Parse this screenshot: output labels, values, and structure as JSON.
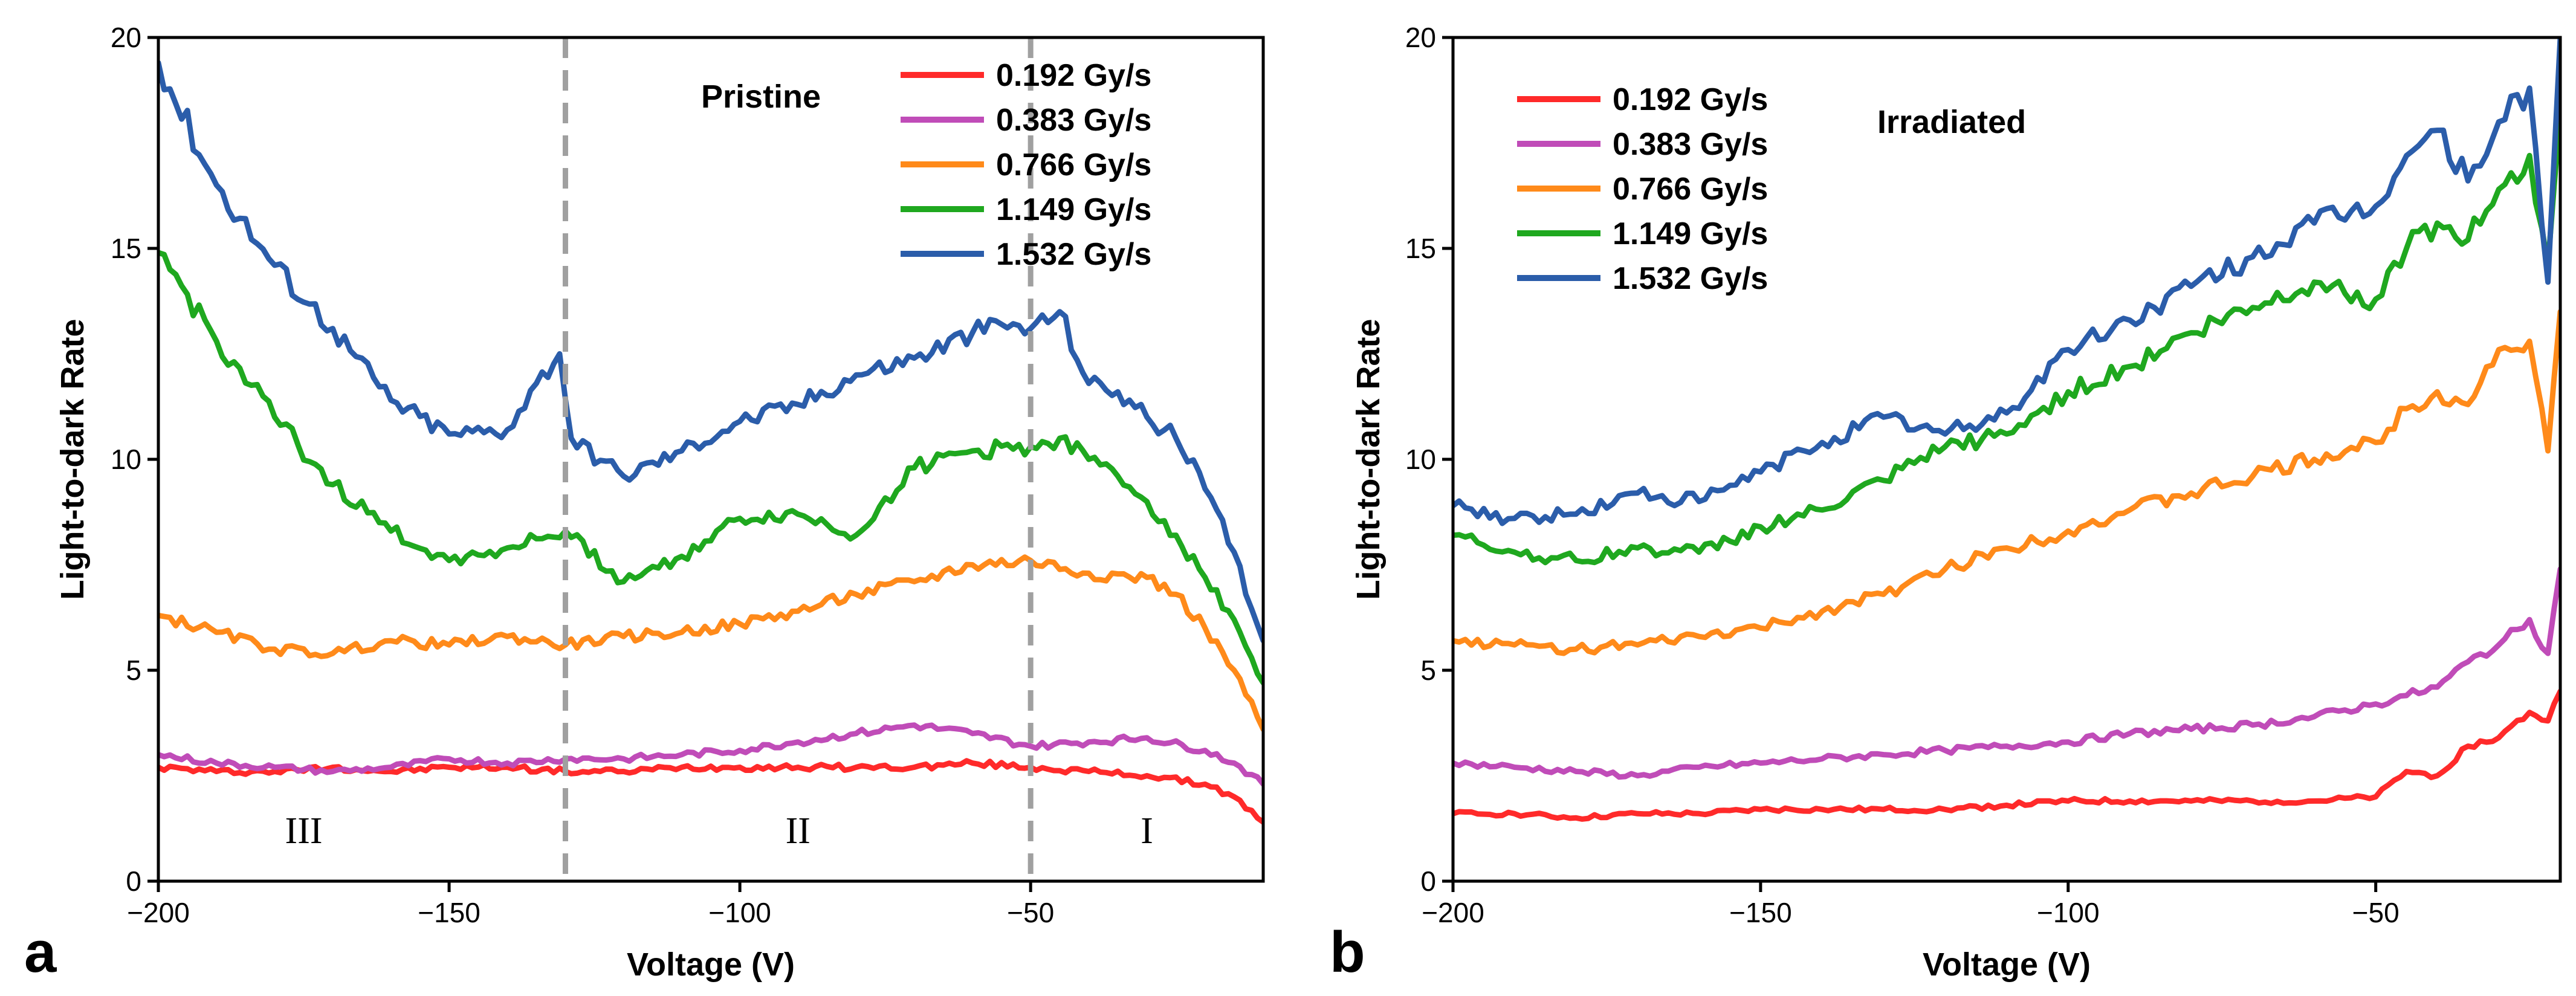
{
  "chart_data": [
    {
      "type": "line",
      "panel": "a",
      "annotation": "Pristine",
      "xlabel": "Voltage (V)",
      "ylabel": "Light-to-dark Rate",
      "xlim": [
        -200,
        -10
      ],
      "ylim": [
        0,
        20
      ],
      "xticks": [
        -200,
        -150,
        -100,
        -50
      ],
      "xtick_labels": [
        "−200",
        "−150",
        "−100",
        "−50"
      ],
      "yticks": [
        0,
        5,
        10,
        15,
        20
      ],
      "ytick_labels": [
        "0",
        "5",
        "10",
        "15",
        "20"
      ],
      "vlines": [
        -130,
        -50
      ],
      "regions": [
        {
          "label": "III",
          "x": -175,
          "y": 0.9
        },
        {
          "label": "II",
          "x": -90,
          "y": 0.9
        },
        {
          "label": "I",
          "x": -30,
          "y": 0.9
        }
      ],
      "legend_position": "top-right",
      "series": [
        {
          "name": "0.192 Gy/s",
          "color": "#FF2A2A",
          "x": [
            -200,
            -190,
            -180,
            -170,
            -160,
            -150,
            -140,
            -130,
            -120,
            -110,
            -100,
            -90,
            -80,
            -70,
            -60,
            -50,
            -40,
            -30,
            -20,
            -15,
            -10
          ],
          "y": [
            2.7,
            2.6,
            2.6,
            2.7,
            2.6,
            2.7,
            2.7,
            2.6,
            2.6,
            2.7,
            2.7,
            2.7,
            2.7,
            2.7,
            2.8,
            2.7,
            2.6,
            2.5,
            2.3,
            2.0,
            1.4
          ]
        },
        {
          "name": "0.383 Gy/s",
          "color": "#C04CB8",
          "x": [
            -200,
            -190,
            -180,
            -170,
            -160,
            -150,
            -140,
            -130,
            -120,
            -110,
            -100,
            -90,
            -80,
            -70,
            -60,
            -50,
            -40,
            -30,
            -20,
            -15,
            -10
          ],
          "y": [
            3.0,
            2.8,
            2.7,
            2.6,
            2.7,
            2.9,
            2.8,
            2.9,
            2.9,
            3.0,
            3.1,
            3.3,
            3.5,
            3.7,
            3.5,
            3.2,
            3.3,
            3.4,
            3.1,
            2.8,
            2.3
          ]
        },
        {
          "name": "0.766 Gy/s",
          "color": "#FF8A1A",
          "x": [
            -200,
            -190,
            -180,
            -170,
            -160,
            -150,
            -140,
            -130,
            -120,
            -110,
            -100,
            -90,
            -80,
            -70,
            -60,
            -50,
            -40,
            -30,
            -25,
            -20,
            -15,
            -10
          ],
          "y": [
            6.3,
            5.9,
            5.5,
            5.4,
            5.7,
            5.6,
            5.8,
            5.6,
            5.8,
            5.9,
            6.1,
            6.4,
            6.8,
            7.1,
            7.5,
            7.6,
            7.3,
            7.2,
            6.8,
            6.0,
            5.0,
            3.6
          ]
        },
        {
          "name": "1.149 Gy/s",
          "color": "#1FA81F",
          "x": [
            -200,
            -190,
            -180,
            -170,
            -160,
            -150,
            -140,
            -130,
            -120,
            -110,
            -100,
            -90,
            -80,
            -70,
            -60,
            -50,
            -45,
            -40,
            -35,
            -30,
            -25,
            -20,
            -15,
            -10
          ],
          "y": [
            14.9,
            12.8,
            11.0,
            9.4,
            8.3,
            7.6,
            7.9,
            8.3,
            7.1,
            7.7,
            8.6,
            8.7,
            8.2,
            9.8,
            10.2,
            10.3,
            10.5,
            10.0,
            9.6,
            9.0,
            8.2,
            7.2,
            6.2,
            4.7
          ]
        },
        {
          "name": "1.532 Gy/s",
          "color": "#2B5DAA",
          "x": [
            -200,
            -190,
            -180,
            -170,
            -160,
            -150,
            -140,
            -135,
            -131,
            -129,
            -120,
            -110,
            -100,
            -90,
            -80,
            -70,
            -60,
            -55,
            -50,
            -45,
            -40,
            -35,
            -30,
            -25,
            -20,
            -15,
            -10
          ],
          "y": [
            19.4,
            16.5,
            14.6,
            13.1,
            11.4,
            10.6,
            10.7,
            11.8,
            12.5,
            10.5,
            9.6,
            10.2,
            10.9,
            11.3,
            12.0,
            12.4,
            13.0,
            13.2,
            13.1,
            13.5,
            11.8,
            11.6,
            11.0,
            10.5,
            9.3,
            7.8,
            5.7
          ]
        }
      ]
    },
    {
      "type": "line",
      "panel": "b",
      "annotation": "Irradiated",
      "xlabel": "Voltage (V)",
      "ylabel": "Light-to-dark Rate",
      "xlim": [
        -200,
        -20
      ],
      "ylim": [
        0,
        20
      ],
      "xticks": [
        -200,
        -150,
        -100,
        -50
      ],
      "xtick_labels": [
        "−200",
        "−150",
        "−100",
        "−50"
      ],
      "yticks": [
        0,
        5,
        10,
        15,
        20
      ],
      "ytick_labels": [
        "0",
        "5",
        "10",
        "15",
        "20"
      ],
      "legend_position": "top-left",
      "series": [
        {
          "name": "0.192 Gy/s",
          "color": "#FF2A2A",
          "x": [
            -200,
            -190,
            -180,
            -170,
            -160,
            -150,
            -140,
            -130,
            -120,
            -110,
            -100,
            -90,
            -80,
            -70,
            -60,
            -50,
            -45,
            -40,
            -35,
            -30,
            -25,
            -22,
            -20
          ],
          "y": [
            1.6,
            1.6,
            1.5,
            1.6,
            1.6,
            1.7,
            1.7,
            1.7,
            1.7,
            1.8,
            1.9,
            1.9,
            1.9,
            1.9,
            1.9,
            2.0,
            2.6,
            2.5,
            3.2,
            3.4,
            4.0,
            3.8,
            4.5
          ]
        },
        {
          "name": "0.383 Gy/s",
          "color": "#C04CB8",
          "x": [
            -200,
            -190,
            -180,
            -170,
            -160,
            -150,
            -140,
            -130,
            -120,
            -110,
            -100,
            -90,
            -80,
            -70,
            -60,
            -50,
            -45,
            -40,
            -35,
            -30,
            -25,
            -22,
            -20
          ],
          "y": [
            2.8,
            2.7,
            2.6,
            2.5,
            2.7,
            2.8,
            2.9,
            3.0,
            3.1,
            3.2,
            3.3,
            3.5,
            3.6,
            3.7,
            3.9,
            4.2,
            4.4,
            4.6,
            5.2,
            5.6,
            6.2,
            5.4,
            7.4
          ]
        },
        {
          "name": "0.766 Gy/s",
          "color": "#FF8A1A",
          "x": [
            -200,
            -190,
            -180,
            -170,
            -160,
            -150,
            -140,
            -130,
            -120,
            -110,
            -100,
            -90,
            -80,
            -70,
            -60,
            -50,
            -45,
            -40,
            -35,
            -30,
            -25,
            -22,
            -20
          ],
          "y": [
            5.7,
            5.6,
            5.5,
            5.6,
            5.8,
            6.0,
            6.4,
            6.8,
            7.4,
            7.9,
            8.3,
            8.8,
            9.2,
            9.6,
            10.0,
            10.4,
            11.2,
            11.6,
            11.3,
            12.6,
            12.8,
            10.2,
            13.5
          ]
        },
        {
          "name": "1.149 Gy/s",
          "color": "#1FA81F",
          "x": [
            -200,
            -190,
            -180,
            -170,
            -160,
            -150,
            -140,
            -130,
            -120,
            -110,
            -100,
            -90,
            -80,
            -70,
            -60,
            -50,
            -45,
            -40,
            -35,
            -30,
            -25,
            -22,
            -20
          ],
          "y": [
            8.2,
            7.8,
            7.6,
            7.9,
            7.8,
            8.4,
            8.8,
            9.5,
            10.3,
            10.6,
            11.6,
            12.2,
            13.0,
            13.6,
            14.2,
            13.8,
            15.0,
            15.6,
            15.2,
            16.4,
            17.2,
            14.6,
            18.2
          ]
        },
        {
          "name": "1.532 Gy/s",
          "color": "#2B5DAA",
          "x": [
            -200,
            -190,
            -180,
            -170,
            -160,
            -150,
            -140,
            -130,
            -120,
            -110,
            -100,
            -90,
            -80,
            -70,
            -60,
            -50,
            -45,
            -40,
            -35,
            -30,
            -25,
            -22,
            -20
          ],
          "y": [
            8.9,
            8.6,
            8.7,
            9.2,
            9.0,
            9.7,
            10.4,
            11.0,
            10.6,
            11.1,
            12.6,
            13.3,
            14.1,
            14.8,
            15.6,
            16.0,
            17.2,
            17.8,
            16.6,
            18.0,
            18.8,
            14.2,
            20.0
          ]
        }
      ]
    }
  ]
}
